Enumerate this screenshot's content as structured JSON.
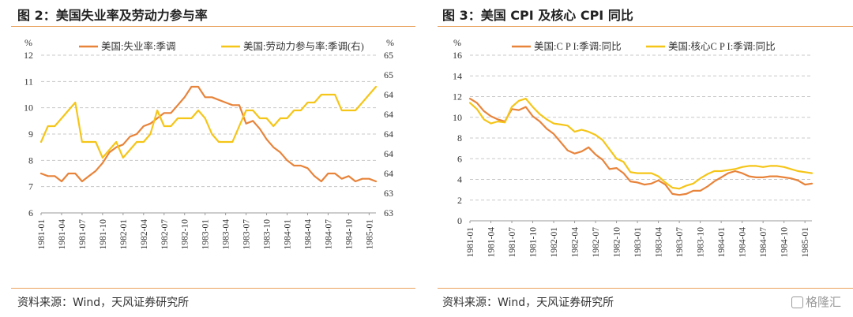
{
  "left": {
    "title": "图 2：美国失业率及劳动力参与率",
    "source": "资料来源：Wind，天风证券研究所"
  },
  "right": {
    "title": "图 3：美国 CPI 及核心 CPI 同比",
    "source": "资料来源：Wind，天风证券研究所"
  },
  "watermark": "格隆汇",
  "colors": {
    "orange": "#e8833a",
    "yellow": "#f5c518",
    "grid": "#c8c8c8",
    "rule": "#e9a15c"
  },
  "chart_data": [
    {
      "type": "line",
      "x": [
        "1981-01",
        "1981-02",
        "1981-03",
        "1981-04",
        "1981-05",
        "1981-06",
        "1981-07",
        "1981-08",
        "1981-09",
        "1981-10",
        "1981-11",
        "1981-12",
        "1982-01",
        "1982-02",
        "1982-03",
        "1982-04",
        "1982-05",
        "1982-06",
        "1982-07",
        "1982-08",
        "1982-09",
        "1982-10",
        "1982-11",
        "1982-12",
        "1983-01",
        "1983-02",
        "1983-03",
        "1983-04",
        "1983-05",
        "1983-06",
        "1983-07",
        "1983-08",
        "1983-09",
        "1983-10",
        "1983-11",
        "1983-12",
        "1984-01",
        "1984-02",
        "1984-03",
        "1984-04",
        "1984-05",
        "1984-06",
        "1984-07",
        "1984-08",
        "1984-09",
        "1984-10",
        "1984-11",
        "1984-12",
        "1985-01",
        "1985-02"
      ],
      "x_tick_labels": [
        "1981-01",
        "1981-04",
        "1981-07",
        "1981-10",
        "1982-01",
        "1982-04",
        "1982-07",
        "1982-10",
        "1983-01",
        "1983-04",
        "1983-07",
        "1983-10",
        "1984-01",
        "1984-04",
        "1984-07",
        "1984-10",
        "1985-01"
      ],
      "series": [
        {
          "name": "美国:失业率:季调",
          "axis": "left",
          "color": "#e8833a",
          "values": [
            7.5,
            7.4,
            7.4,
            7.2,
            7.5,
            7.5,
            7.2,
            7.4,
            7.6,
            7.9,
            8.3,
            8.5,
            8.6,
            8.9,
            9.0,
            9.3,
            9.4,
            9.6,
            9.8,
            9.8,
            10.1,
            10.4,
            10.8,
            10.8,
            10.4,
            10.4,
            10.3,
            10.2,
            10.1,
            10.1,
            9.4,
            9.5,
            9.2,
            8.8,
            8.5,
            8.3,
            8.0,
            7.8,
            7.8,
            7.7,
            7.4,
            7.2,
            7.5,
            7.5,
            7.3,
            7.4,
            7.2,
            7.3,
            7.3,
            7.2
          ]
        },
        {
          "name": "美国:劳动力参与率:季调(右)",
          "axis": "right",
          "color": "#f5c518",
          "values": [
            63.9,
            64.1,
            64.1,
            64.2,
            64.3,
            64.4,
            63.9,
            63.9,
            63.9,
            63.7,
            63.8,
            63.9,
            63.7,
            63.8,
            63.9,
            63.9,
            64.0,
            64.3,
            64.1,
            64.1,
            64.2,
            64.2,
            64.2,
            64.3,
            64.2,
            64.0,
            63.9,
            63.9,
            63.9,
            64.1,
            64.3,
            64.3,
            64.2,
            64.2,
            64.1,
            64.2,
            64.2,
            64.3,
            64.3,
            64.4,
            64.4,
            64.5,
            64.5,
            64.5,
            64.3,
            64.3,
            64.3,
            64.4,
            64.5,
            64.6
          ]
        }
      ],
      "y_left": {
        "label": "%",
        "ylim": [
          6,
          12
        ],
        "ticks": [
          6,
          7,
          8,
          9,
          10,
          11,
          12
        ]
      },
      "y_right": {
        "label": "%",
        "ylim": [
          63,
          65
        ],
        "tick_labels": [
          "63",
          "63",
          "64",
          "64",
          "64",
          "64",
          "64",
          "65",
          "65"
        ]
      },
      "grid": true,
      "legend_position": "top"
    },
    {
      "type": "line",
      "x": [
        "1981-01",
        "1981-02",
        "1981-03",
        "1981-04",
        "1981-05",
        "1981-06",
        "1981-07",
        "1981-08",
        "1981-09",
        "1981-10",
        "1981-11",
        "1981-12",
        "1982-01",
        "1982-02",
        "1982-03",
        "1982-04",
        "1982-05",
        "1982-06",
        "1982-07",
        "1982-08",
        "1982-09",
        "1982-10",
        "1982-11",
        "1982-12",
        "1983-01",
        "1983-02",
        "1983-03",
        "1983-04",
        "1983-05",
        "1983-06",
        "1983-07",
        "1983-08",
        "1983-09",
        "1983-10",
        "1983-11",
        "1983-12",
        "1984-01",
        "1984-02",
        "1984-03",
        "1984-04",
        "1984-05",
        "1984-06",
        "1984-07",
        "1984-08",
        "1984-09",
        "1984-10",
        "1984-11",
        "1984-12",
        "1985-01",
        "1985-02"
      ],
      "x_tick_labels": [
        "1981-01",
        "1981-04",
        "1981-07",
        "1981-10",
        "1982-01",
        "1982-04",
        "1982-07",
        "1982-10",
        "1983-01",
        "1983-04",
        "1983-07",
        "1983-10",
        "1984-01",
        "1984-04",
        "1984-07",
        "1984-10",
        "1985-01"
      ],
      "series": [
        {
          "name": "美国:C P I:季调:同比",
          "color": "#e8833a",
          "values": [
            11.8,
            11.4,
            10.6,
            10.1,
            9.8,
            9.6,
            10.8,
            10.7,
            11.0,
            10.1,
            9.6,
            8.9,
            8.4,
            7.6,
            6.8,
            6.5,
            6.7,
            7.1,
            6.4,
            5.9,
            5.0,
            5.1,
            4.6,
            3.8,
            3.7,
            3.5,
            3.6,
            3.9,
            3.5,
            2.6,
            2.5,
            2.6,
            2.9,
            2.9,
            3.3,
            3.8,
            4.2,
            4.6,
            4.8,
            4.6,
            4.3,
            4.2,
            4.2,
            4.3,
            4.3,
            4.2,
            4.1,
            3.9,
            3.5,
            3.6
          ]
        },
        {
          "name": "美国:核心C P I:季调:同比",
          "color": "#f5c518",
          "values": [
            11.4,
            10.8,
            9.8,
            9.4,
            9.6,
            9.5,
            11.0,
            11.6,
            11.8,
            11.0,
            10.3,
            9.8,
            9.4,
            9.3,
            9.2,
            8.6,
            8.8,
            8.6,
            8.3,
            7.8,
            6.9,
            6.0,
            5.7,
            4.7,
            4.6,
            4.6,
            4.6,
            4.3,
            3.7,
            3.2,
            3.1,
            3.4,
            3.6,
            4.1,
            4.5,
            4.8,
            4.8,
            4.9,
            5.0,
            5.2,
            5.3,
            5.3,
            5.2,
            5.3,
            5.3,
            5.2,
            5.0,
            4.8,
            4.7,
            4.6
          ]
        }
      ],
      "y": {
        "label": "%",
        "ylim": [
          0,
          16
        ],
        "ticks": [
          0,
          2,
          4,
          6,
          8,
          10,
          12,
          14,
          16
        ]
      },
      "grid": true,
      "legend_position": "top"
    }
  ]
}
